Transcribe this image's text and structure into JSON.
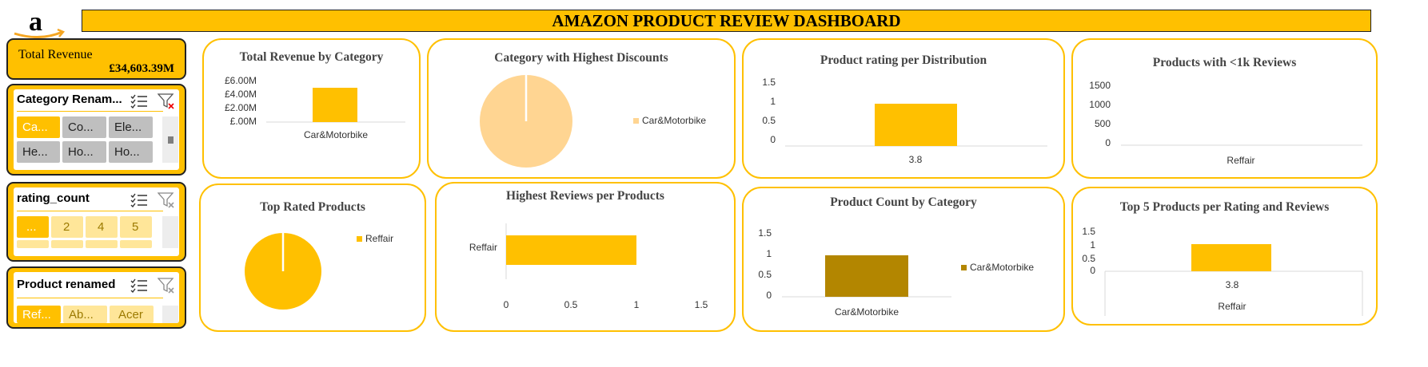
{
  "header": {
    "title": "AMAZON PRODUCT REVIEW DASHBOARD",
    "logo": "amazon-logo-icon"
  },
  "kpi": {
    "label": "Total Revenue",
    "value": "£34,603.39M"
  },
  "slicers": [
    {
      "title": "Category Renam...",
      "items": [
        "Ca...",
        "Co...",
        "Ele...",
        "He...",
        "Ho...",
        "Ho..."
      ]
    },
    {
      "title": "rating_count",
      "items": [
        "...",
        "2",
        "4",
        "5"
      ]
    },
    {
      "title": "Product renamed",
      "items": [
        "Ref...",
        "Ab...",
        "Acer"
      ]
    }
  ],
  "colors": {
    "accent": "#FFC000",
    "pie_light": "#FFD592",
    "dark_gold": "#B38600",
    "slicer_gray": "#BFBFBF",
    "slicer_pale": "#FFE699"
  },
  "chart_data": [
    {
      "id": "revenue",
      "type": "bar",
      "title": "Total Revenue by Category",
      "categories": [
        "Car&Motorbike"
      ],
      "values": [
        5.0
      ],
      "ylim": [
        0,
        6
      ],
      "yticks": [
        "£6.00M",
        "£4.00M",
        "£2.00M",
        "£.00M"
      ]
    },
    {
      "id": "discounts",
      "type": "pie",
      "title": "Category with Highest Discounts",
      "labels": [
        "Car&Motorbike"
      ],
      "values": [
        1
      ],
      "legend": "right"
    },
    {
      "id": "rating_dist",
      "type": "bar",
      "title": "Product rating per Distribution",
      "categories": [
        "3.8"
      ],
      "values": [
        1
      ],
      "ylim": [
        0,
        1.5
      ],
      "yticks": [
        "1.5",
        "1",
        "0.5",
        "0"
      ]
    },
    {
      "id": "under1k",
      "type": "bar",
      "title": "Products with <1k Reviews",
      "categories": [
        "Reffair"
      ],
      "values": [
        0
      ],
      "ylim": [
        0,
        1500
      ],
      "yticks": [
        "1500",
        "1000",
        "500",
        "0"
      ]
    },
    {
      "id": "top_rated",
      "type": "pie",
      "title": "Top Rated Products",
      "labels": [
        "Reffair"
      ],
      "values": [
        1
      ],
      "legend": "right"
    },
    {
      "id": "highest_reviews",
      "type": "bar",
      "orientation": "horizontal",
      "title": "Highest Reviews per Products",
      "categories": [
        "Reffair"
      ],
      "values": [
        1
      ],
      "xlim": [
        0,
        1.5
      ],
      "xticks": [
        "0",
        "0.5",
        "1",
        "1.5"
      ]
    },
    {
      "id": "product_count",
      "type": "bar",
      "title": "Product Count by Category",
      "categories": [
        "Car&Motorbike"
      ],
      "values": [
        1
      ],
      "ylim": [
        0,
        1.5
      ],
      "yticks": [
        "1.5",
        "1",
        "0.5",
        "0"
      ],
      "legend": [
        "Car&Motorbike"
      ]
    },
    {
      "id": "top5",
      "type": "bar",
      "title": "Top 5 Products per Rating and Reviews",
      "categories": [
        "3.8"
      ],
      "outer_categories": [
        "Reffair"
      ],
      "values": [
        1
      ],
      "ylim": [
        0,
        1.5
      ],
      "yticks": [
        "1.5",
        "1",
        "0.5",
        "0"
      ]
    }
  ]
}
